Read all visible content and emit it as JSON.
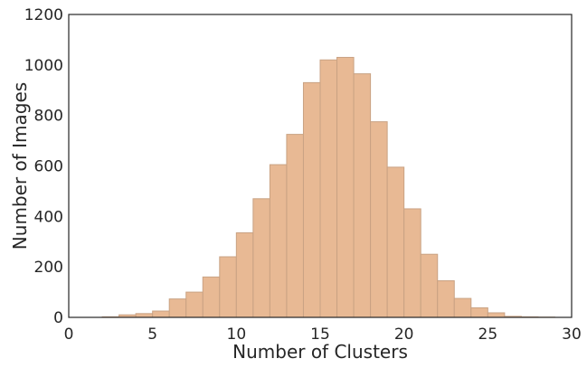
{
  "chart_data": {
    "type": "bar",
    "xlabel": "Number of Clusters",
    "ylabel": "Number of Images",
    "xlim": [
      0,
      30
    ],
    "ylim": [
      0,
      1200
    ],
    "xticks": [
      "0",
      "5",
      "10",
      "15",
      "20",
      "25",
      "30"
    ],
    "yticks": [
      "0",
      "200",
      "400",
      "600",
      "800",
      "1000",
      "1200"
    ],
    "grid": false,
    "bar_color": "#e8b994",
    "bar_edge_color": "#c9a283",
    "bins": [
      {
        "x0": 2,
        "x1": 3,
        "value": 2
      },
      {
        "x0": 3,
        "x1": 4,
        "value": 10
      },
      {
        "x0": 4,
        "x1": 5,
        "value": 15
      },
      {
        "x0": 5,
        "x1": 6,
        "value": 25
      },
      {
        "x0": 6,
        "x1": 7,
        "value": 73
      },
      {
        "x0": 7,
        "x1": 8,
        "value": 100
      },
      {
        "x0": 8,
        "x1": 9,
        "value": 160
      },
      {
        "x0": 9,
        "x1": 10,
        "value": 240
      },
      {
        "x0": 10,
        "x1": 11,
        "value": 335
      },
      {
        "x0": 11,
        "x1": 12,
        "value": 470
      },
      {
        "x0": 12,
        "x1": 13,
        "value": 605
      },
      {
        "x0": 13,
        "x1": 14,
        "value": 725
      },
      {
        "x0": 14,
        "x1": 15,
        "value": 930
      },
      {
        "x0": 15,
        "x1": 16,
        "value": 1020
      },
      {
        "x0": 16,
        "x1": 17,
        "value": 1030
      },
      {
        "x0": 17,
        "x1": 18,
        "value": 965
      },
      {
        "x0": 18,
        "x1": 19,
        "value": 775
      },
      {
        "x0": 19,
        "x1": 20,
        "value": 595
      },
      {
        "x0": 20,
        "x1": 21,
        "value": 430
      },
      {
        "x0": 21,
        "x1": 22,
        "value": 250
      },
      {
        "x0": 22,
        "x1": 23,
        "value": 145
      },
      {
        "x0": 23,
        "x1": 24,
        "value": 75
      },
      {
        "x0": 24,
        "x1": 25,
        "value": 38
      },
      {
        "x0": 25,
        "x1": 26,
        "value": 18
      },
      {
        "x0": 26,
        "x1": 27,
        "value": 4
      },
      {
        "x0": 27,
        "x1": 28,
        "value": 2
      },
      {
        "x0": 28,
        "x1": 29,
        "value": 1
      }
    ]
  }
}
